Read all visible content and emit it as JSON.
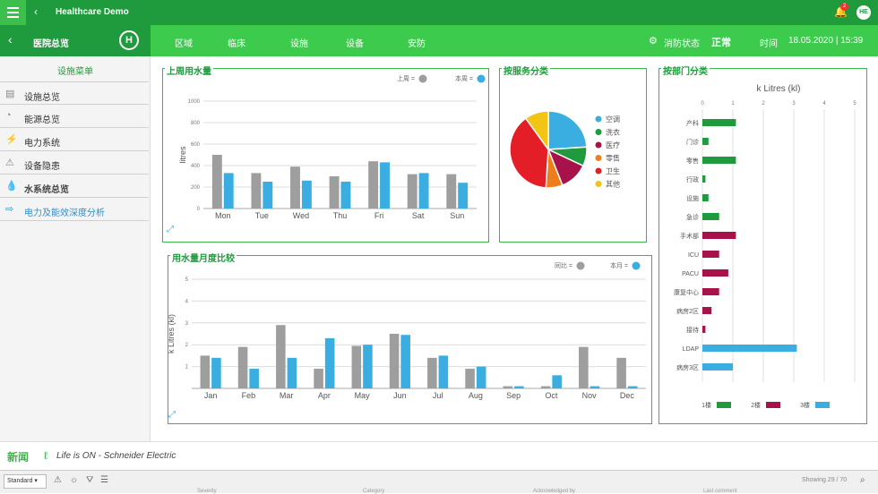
{
  "app": {
    "title": "Healthcare Demo",
    "notif_count": "2",
    "avatar": "HE"
  },
  "nav": {
    "section": "医院总览",
    "items": [
      "区域",
      "临床",
      "设施",
      "设备",
      "安防"
    ],
    "status_label": "消防状态",
    "status_value": "正常",
    "time_label": "时间",
    "time_value": "18.05.2020 | 15:39"
  },
  "sidebar": {
    "heading": "设施菜单",
    "items": [
      {
        "label": "设施总览",
        "icon": "building-icon"
      },
      {
        "label": "能源总览",
        "icon": "gauge-icon"
      },
      {
        "label": "电力系统",
        "icon": "plug-icon"
      },
      {
        "label": "设备隐患",
        "icon": "warning-icon"
      },
      {
        "label": "水系统总览",
        "icon": "water-drop-icon"
      },
      {
        "label": "电力及能效深度分析",
        "icon": "analysis-icon"
      }
    ]
  },
  "panels": {
    "weekly": {
      "title": "上周用水量",
      "legend_prev": "上周 =",
      "legend_cur": "本周 ="
    },
    "service": {
      "title": "按服务分类"
    },
    "dept": {
      "title": "按部门分类"
    },
    "monthly": {
      "title": "用水量月度比较",
      "legend_prev": "同比 =",
      "legend_cur": "本月 ="
    }
  },
  "chart_data": [
    {
      "type": "bar",
      "title": "上周用水量",
      "ylabel": "litres",
      "categories": [
        "Mon",
        "Tue",
        "Wed",
        "Thu",
        "Fri",
        "Sat",
        "Sun"
      ],
      "series": [
        {
          "name": "上周",
          "values": [
            500,
            330,
            390,
            300,
            440,
            320,
            320
          ],
          "color": "#9e9e9e"
        },
        {
          "name": "本周",
          "values": [
            330,
            250,
            260,
            250,
            430,
            330,
            240
          ],
          "color": "#3aaee0"
        }
      ],
      "ylim": [
        0,
        1000
      ],
      "yticks": [
        "0",
        "200",
        "400",
        "600",
        "800",
        "1000"
      ],
      "grid": true
    },
    {
      "type": "pie",
      "title": "按服务分类",
      "labels": [
        "空调",
        "洗衣",
        "医疗",
        "零售",
        "卫生",
        "其他"
      ],
      "values": [
        24,
        8,
        12,
        7,
        39,
        10
      ],
      "colors": [
        "#3aaee0",
        "#1f9a3c",
        "#a8124a",
        "#ee7d1b",
        "#e41e26",
        "#f2c413"
      ]
    },
    {
      "type": "bar",
      "orientation": "horizontal",
      "title": "按部门分类",
      "xlabel": "k Litres (kl)",
      "xlim": [
        0,
        5
      ],
      "xticks": [
        "0",
        "1",
        "2",
        "3",
        "4",
        "5"
      ],
      "categories": [
        "产科",
        "门诊",
        "零售",
        "行政",
        "设施",
        "急诊",
        "手术部",
        "ICU",
        "PACU",
        "康复中心",
        "病房2区",
        "接待",
        "LDAP",
        "病房3区"
      ],
      "values": [
        1.1,
        0.2,
        1.1,
        0.1,
        0.2,
        0.55,
        1.1,
        0.55,
        0.85,
        0.55,
        0.3,
        0.1,
        3.1,
        1.0
      ],
      "groups": [
        0,
        0,
        0,
        0,
        0,
        0,
        1,
        1,
        1,
        1,
        1,
        1,
        2,
        2
      ],
      "legend": [
        {
          "name": "1楼",
          "color": "#1f9a3c"
        },
        {
          "name": "2楼",
          "color": "#a8124a"
        },
        {
          "name": "3楼",
          "color": "#3aaee0"
        }
      ]
    },
    {
      "type": "bar",
      "title": "用水量月度比较",
      "ylabel": "k Litres (kl)",
      "categories": [
        "Jan",
        "Feb",
        "Mar",
        "Apr",
        "May",
        "Jun",
        "Jul",
        "Aug",
        "Sep",
        "Oct",
        "Nov",
        "Dec"
      ],
      "series": [
        {
          "name": "同比",
          "values": [
            1.5,
            1.9,
            2.9,
            0.9,
            1.95,
            2.5,
            1.4,
            0.9,
            0.1,
            0.1,
            1.9,
            1.4
          ],
          "color": "#9e9e9e"
        },
        {
          "name": "本月",
          "values": [
            1.4,
            0.9,
            1.4,
            2.3,
            2.0,
            2.45,
            1.5,
            1.0,
            0.1,
            0.6,
            0.1,
            0.1
          ],
          "color": "#3aaee0"
        }
      ],
      "ylim": [
        0,
        5
      ],
      "yticks": [
        "1",
        "2",
        "3",
        "4",
        "5"
      ],
      "grid": true
    }
  ],
  "footer": {
    "news_label": "新闻",
    "ticker": "Life is ON - Schneider Electric"
  },
  "bottom": {
    "filter_value": "Standard",
    "showing": "Showing 29 / 70",
    "columns": [
      "Severity",
      "Category",
      "Acknowledged by",
      "Last comment"
    ]
  }
}
